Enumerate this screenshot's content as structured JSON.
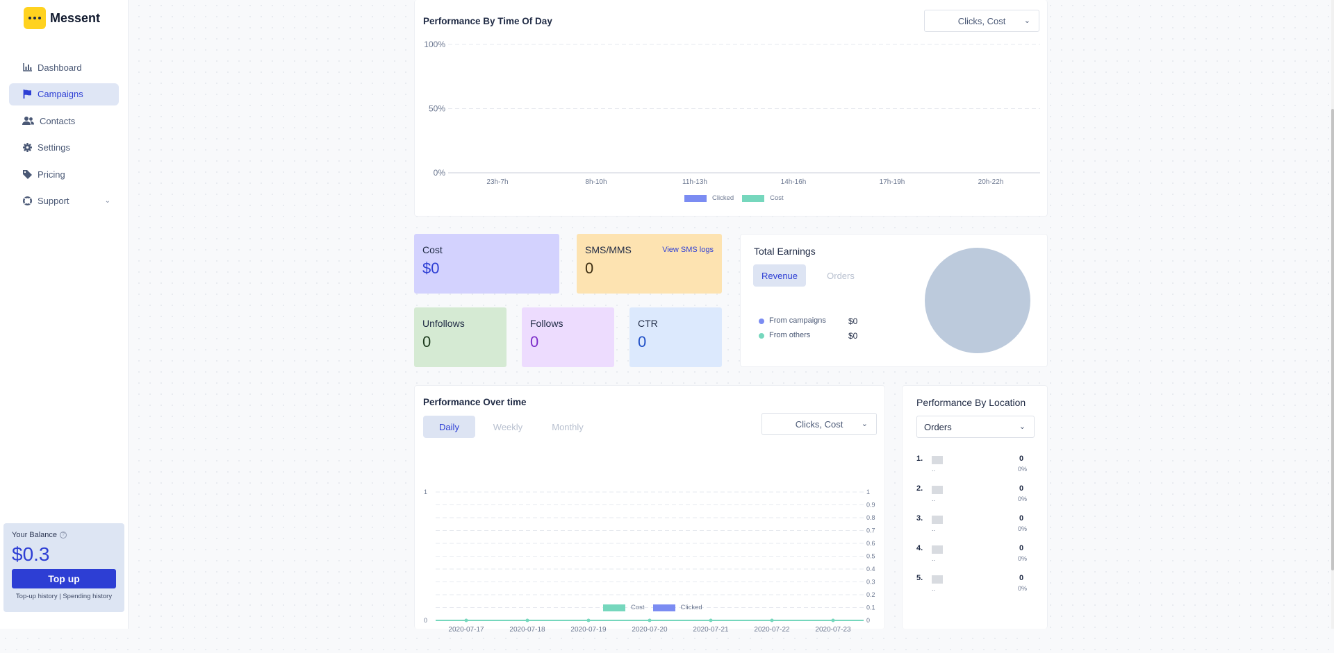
{
  "app": {
    "name": "Messent"
  },
  "sidebar": {
    "items": [
      {
        "label": "Dashboard",
        "icon": "bar-chart-icon"
      },
      {
        "label": "Campaigns",
        "icon": "flag-icon",
        "active": true
      },
      {
        "label": "Contacts",
        "icon": "users-icon"
      },
      {
        "label": "Settings",
        "icon": "gear-icon"
      },
      {
        "label": "Pricing",
        "icon": "tag-icon"
      },
      {
        "label": "Support",
        "icon": "lifebuoy-icon"
      }
    ],
    "balance": {
      "label": "Your Balance",
      "amount": "$0.3",
      "topup_label": "Top up",
      "links": "Top-up history | Spending history"
    }
  },
  "time_of_day": {
    "title": "Performance By Time Of Day",
    "select_value": "Clicks, Cost"
  },
  "stats": {
    "cost": {
      "label": "Cost",
      "value": "$0"
    },
    "sms": {
      "label": "SMS/MMS",
      "value": "0",
      "link": "View SMS logs"
    },
    "unfollows": {
      "label": "Unfollows",
      "value": "0"
    },
    "follows": {
      "label": "Follows",
      "value": "0"
    },
    "ctr": {
      "label": "CTR",
      "value": "0"
    }
  },
  "earnings": {
    "title": "Total Earnings",
    "tabs": [
      "Revenue",
      "Orders"
    ],
    "legend": [
      {
        "label": "From campaigns",
        "value": "$0"
      },
      {
        "label": "From others",
        "value": "$0"
      }
    ]
  },
  "over_time": {
    "title": "Performance Over time",
    "tabs": [
      "Daily",
      "Weekly",
      "Monthly"
    ],
    "select_value": "Clicks, Cost"
  },
  "location": {
    "title": "Performance By Location",
    "select_value": "Orders",
    "rows": [
      {
        "rank": "1.",
        "dash": "..",
        "value": "0",
        "pct": "0%"
      },
      {
        "rank": "2.",
        "dash": "..",
        "value": "0",
        "pct": "0%"
      },
      {
        "rank": "3.",
        "dash": "..",
        "value": "0",
        "pct": "0%"
      },
      {
        "rank": "4.",
        "dash": "..",
        "value": "0",
        "pct": "0%"
      },
      {
        "rank": "5.",
        "dash": "..",
        "value": "0",
        "pct": "0%"
      }
    ]
  },
  "colors": {
    "clicked": "#7b8cf2",
    "cost": "#76d7bd",
    "accent": "#2d3ed4",
    "pie": "#bccadc"
  },
  "chart_data": [
    {
      "type": "bar",
      "title": "Performance By Time Of Day",
      "categories": [
        "23h-7h",
        "8h-10h",
        "11h-13h",
        "14h-16h",
        "17h-19h",
        "20h-22h"
      ],
      "y_ticks": [
        "0%",
        "50%",
        "100%"
      ],
      "ylim": [
        0,
        100
      ],
      "series": [
        {
          "name": "Clicked",
          "values": [
            0,
            0,
            0,
            0,
            0,
            0
          ]
        },
        {
          "name": "Cost",
          "values": [
            0,
            0,
            0,
            0,
            0,
            0
          ]
        }
      ],
      "legend": "bottom",
      "grid": true
    },
    {
      "type": "pie",
      "title": "Total Earnings",
      "categories": [
        "From campaigns",
        "From others"
      ],
      "values": [
        0,
        0
      ]
    },
    {
      "type": "line",
      "title": "Performance Over time",
      "x": [
        "2020-07-17",
        "2020-07-18",
        "2020-07-19",
        "2020-07-20",
        "2020-07-21",
        "2020-07-22",
        "2020-07-23"
      ],
      "y_left_ticks": [
        "0",
        "1"
      ],
      "y_right_ticks": [
        "0",
        "0.1",
        "0.2",
        "0.3",
        "0.4",
        "0.5",
        "0.6",
        "0.7",
        "0.8",
        "0.9",
        "1"
      ],
      "ylim": [
        0,
        1
      ],
      "series": [
        {
          "name": "Cost",
          "values": [
            0,
            0,
            0,
            0,
            0,
            0,
            0
          ]
        },
        {
          "name": "Clicked",
          "values": [
            0,
            0,
            0,
            0,
            0,
            0,
            0
          ]
        }
      ],
      "legend": "bottom",
      "grid": true
    }
  ]
}
